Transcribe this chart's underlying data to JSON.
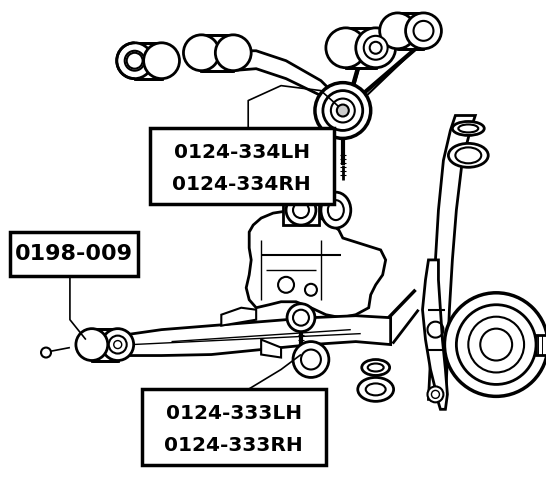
{
  "bg_color": "#ffffff",
  "line_color": "#000000",
  "fig_width": 5.46,
  "fig_height": 4.8,
  "dpi": 100,
  "labels": {
    "main": "0198-009",
    "upper_lh": "0124-334LH",
    "upper_rh": "0124-334RH",
    "lower_lh": "0124-333LH",
    "lower_rh": "0124-333RH"
  }
}
